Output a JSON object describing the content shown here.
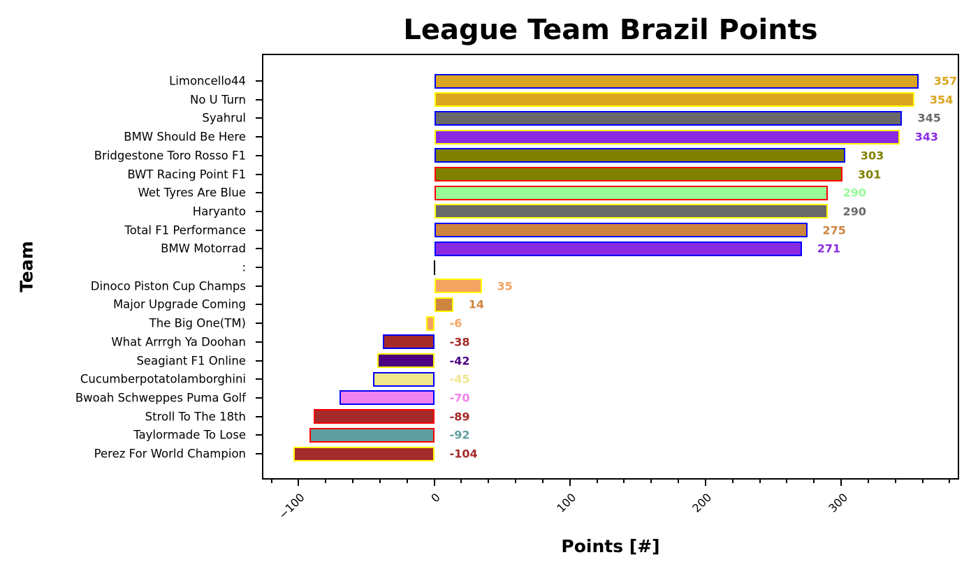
{
  "chart_data": {
    "type": "bar",
    "orientation": "horizontal",
    "title": "League Team Brazil Points",
    "xlabel": "Points [#]",
    "ylabel": "Team",
    "xlim": [
      -127,
      387
    ],
    "xticks": [
      -100,
      0,
      100,
      200,
      300
    ],
    "xtick_labels": [
      "−100",
      "0",
      "100",
      "200",
      "300"
    ],
    "minor_tick_step": 20,
    "grid": false,
    "legend": null,
    "categories": [
      "Limoncello44",
      "No U Turn",
      "Syahrul",
      "BMW Should Be Here",
      "Bridgestone Toro Rosso F1",
      "BWT Racing Point F1",
      "Wet Tyres Are Blue",
      "Haryanto",
      "Total F1 Performance",
      "BMW Motorrad",
      ":",
      "Dinoco Piston Cup Champs",
      "Major Upgrade Coming",
      "The Big One(TM)",
      "What Arrrgh Ya Doohan",
      "Seagiant F1 Online",
      "Cucumberpotatolamborghini",
      "Bwoah Schweppes Puma Golf",
      "Stroll To The 18th",
      "Taylormade To Lose",
      "Perez For World Champion"
    ],
    "values": [
      357,
      354,
      345,
      343,
      303,
      301,
      290,
      290,
      275,
      271,
      null,
      35,
      14,
      -6,
      -38,
      -42,
      -45,
      -70,
      -89,
      -92,
      -104
    ],
    "value_labels": [
      "357",
      "354",
      "345",
      "343",
      "303",
      "301",
      "290",
      "290",
      "275",
      "271",
      "",
      "35",
      "14",
      "-6",
      "-38",
      "-42",
      "-45",
      "-70",
      "-89",
      "-92",
      "-104"
    ],
    "fill_colors": [
      "#daa520",
      "#daa520",
      "#696969",
      "#8a2be2",
      "#808000",
      "#808000",
      "#98fb98",
      "#696969",
      "#cd853f",
      "#8a2be2",
      null,
      "#f4a460",
      "#cd853f",
      "#f4a460",
      "#a52a2a",
      "#4b0082",
      "#f0e68c",
      "#ee82ee",
      "#a52a2a",
      "#5f9ea0",
      "#a52a2a"
    ],
    "edge_colors": [
      "#0000ff",
      "#ffff00",
      "#0000ff",
      "#ffff00",
      "#0000ff",
      "#ff0000",
      "#ff0000",
      "#ffff00",
      "#0000ff",
      "#0000ff",
      null,
      "#ffff00",
      "#ffff00",
      "#ffff00",
      "#0000ff",
      "#ffff00",
      "#0000ff",
      "#0000ff",
      "#ff0000",
      "#ff0000",
      "#ffff00"
    ]
  }
}
